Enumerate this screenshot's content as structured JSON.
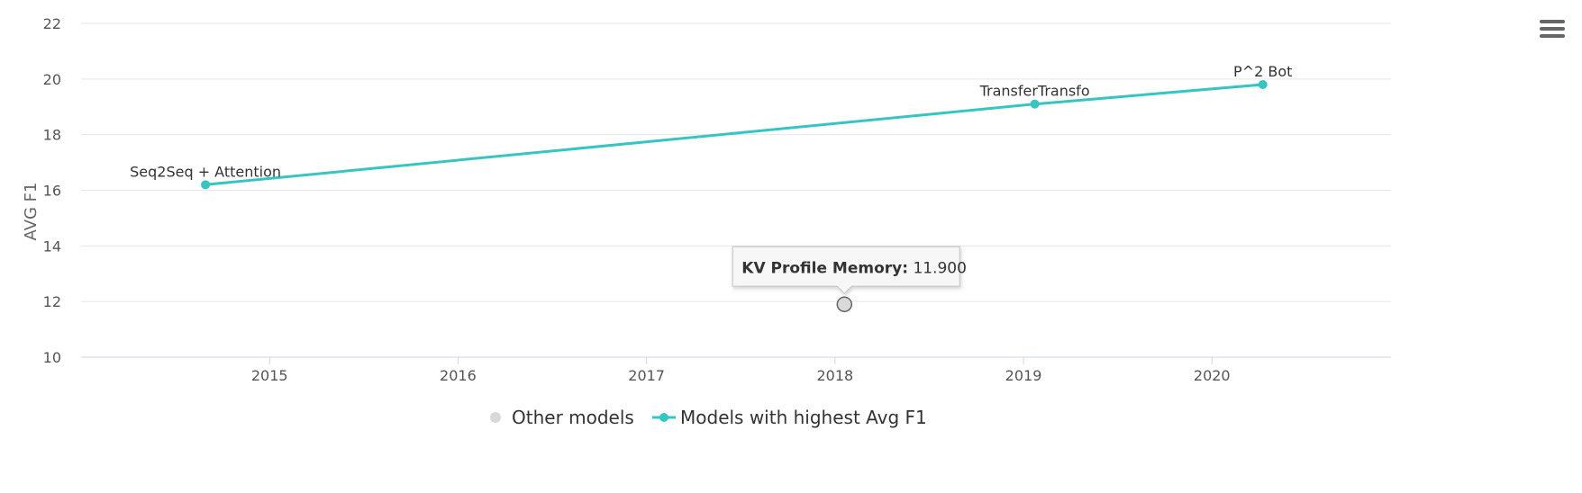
{
  "chart_data": {
    "type": "scatter",
    "xlabel": "",
    "ylabel": "AVG F1",
    "xlim": [
      2014.0,
      2020.95
    ],
    "ylim": [
      10,
      22
    ],
    "x_ticks": [
      2015,
      2016,
      2017,
      2018,
      2019,
      2020
    ],
    "y_ticks": [
      10,
      12,
      14,
      16,
      18,
      20,
      22
    ],
    "grid": "horizontal",
    "legend_position": "bottom-center",
    "series": [
      {
        "name": "Other models",
        "color": "#d9d9d9",
        "marker": "circle",
        "line": false,
        "points": [
          {
            "x": 2018.05,
            "y": 11.9,
            "label": "KV Profile Memory"
          }
        ]
      },
      {
        "name": "Models with highest Avg F1",
        "color": "#36c5c0",
        "marker": "circle",
        "line": true,
        "points": [
          {
            "x": 2014.66,
            "y": 16.2,
            "label": "Seq2Seq + Attention"
          },
          {
            "x": 2019.06,
            "y": 19.1,
            "label": "TransferTransfo"
          },
          {
            "x": 2020.27,
            "y": 19.8,
            "label": "P^2 Bot"
          }
        ]
      }
    ],
    "tooltip": {
      "name": "KV Profile Memory",
      "separator": ":",
      "value": "11.900"
    }
  },
  "toolbar": {
    "menu_icon": "hamburger-menu-icon"
  }
}
